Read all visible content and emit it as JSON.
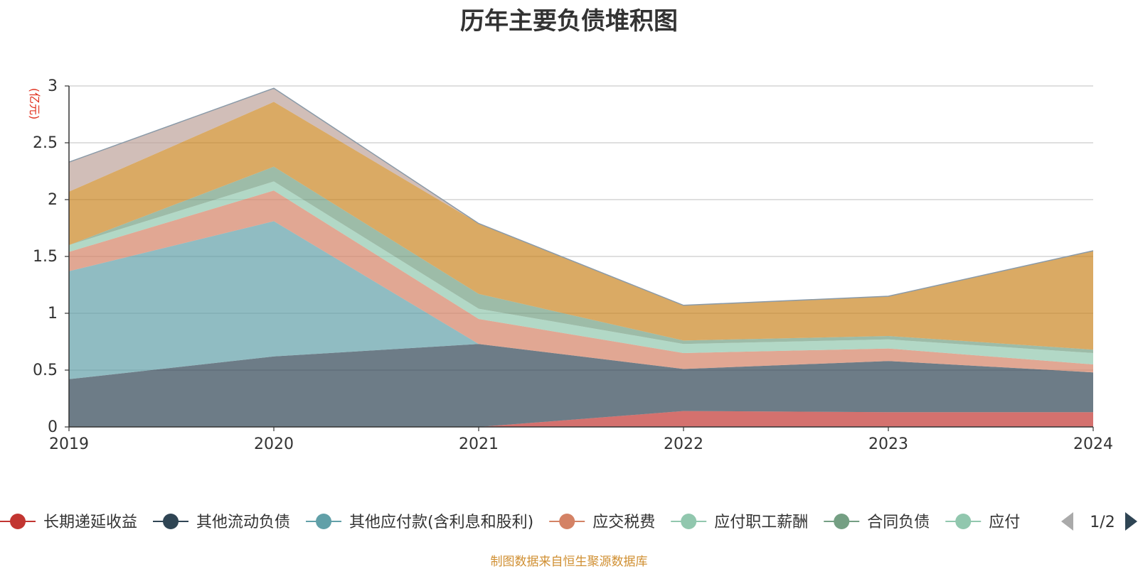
{
  "page": {
    "source": "制图数据来自恒生聚源数据库"
  },
  "chart_data": {
    "type": "area",
    "stacked": true,
    "title": "历年主要负债堆积图",
    "ylabel": "(亿元)",
    "xlabel": "",
    "categories": [
      "2019",
      "2020",
      "2021",
      "2022",
      "2023",
      "2024"
    ],
    "ylim": [
      0,
      3
    ],
    "yticks": [
      "0",
      "0.5",
      "1",
      "1.5",
      "2",
      "2.5",
      "3"
    ],
    "grid": true,
    "legend_position": "bottom",
    "series": [
      {
        "name": "长期递延收益",
        "color": "#c23531",
        "values": [
          0,
          0,
          0,
          0.14,
          0.13,
          0.13
        ]
      },
      {
        "name": "其他流动负债",
        "color": "#2f4554",
        "values": [
          0.42,
          0.62,
          0.73,
          0.37,
          0.45,
          0.35
        ]
      },
      {
        "name": "其他应付款(含利息和股利)",
        "color": "#61a0a8",
        "values": [
          0.95,
          1.19,
          0,
          0,
          0,
          0
        ]
      },
      {
        "name": "应交税费",
        "color": "#d48265",
        "values": [
          0.17,
          0.27,
          0.22,
          0.14,
          0.11,
          0.07
        ]
      },
      {
        "name": "应付职工薪酬",
        "color": "#91c7ae",
        "values": [
          0.06,
          0.08,
          0.09,
          0.08,
          0.08,
          0.1
        ]
      },
      {
        "name": "合同负债",
        "color": "#749f83",
        "values": [
          0,
          0.13,
          0.13,
          0.03,
          0.03,
          0.03
        ]
      },
      {
        "name": "应付账款",
        "color": "#ca8622",
        "values": [
          0.47,
          0.57,
          0.62,
          0.31,
          0.35,
          0.87
        ]
      },
      {
        "name": "",
        "color": "#bda29a",
        "values": [
          0.26,
          0.12,
          0,
          0,
          0,
          0
        ]
      }
    ],
    "legend": {
      "visible_items": [
        "长期递延收益",
        "其他流动负债",
        "其他应付款(含利息和股利)",
        "应交税费",
        "应付职工薪酬",
        "合同负债",
        "应付"
      ],
      "page_indicator": "1/2"
    }
  }
}
